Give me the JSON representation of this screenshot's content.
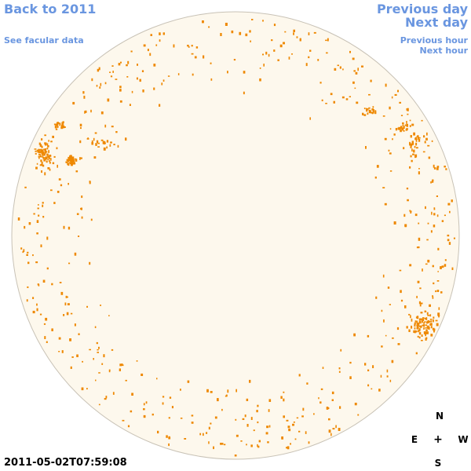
{
  "nav": {
    "back_label": "Back to 2011",
    "facular_label": "See facular data",
    "prev_day_label": "Previous day",
    "next_day_label": "Next day",
    "prev_hour_label": "Previous hour",
    "next_hour_label": "Next hour"
  },
  "timestamp": "2011-05-02T07:59:08",
  "compass": {
    "north": "N",
    "east": "E",
    "center": "+",
    "west": "W",
    "south": "S"
  },
  "colors": {
    "link": "#6a96e0",
    "disk_fill": "#fdf8ed",
    "disk_stroke": "#c8c2b6",
    "spot": "#ee8800",
    "text": "#000000"
  }
}
